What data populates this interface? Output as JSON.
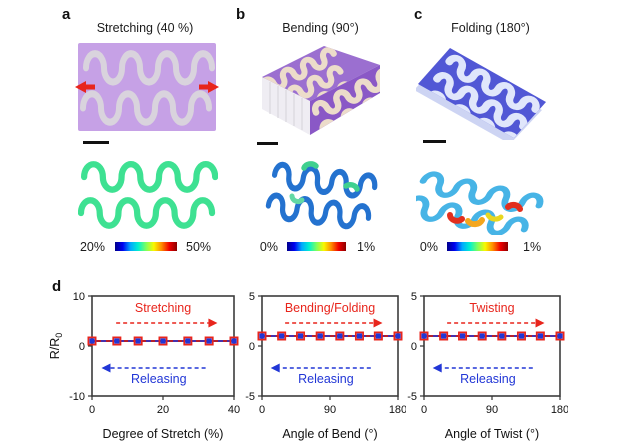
{
  "figure": {
    "panels": {
      "a": {
        "letter": "a",
        "title": "Stretching (40 %)",
        "colorbar": {
          "min": "20%",
          "max": "50%"
        }
      },
      "b": {
        "letter": "b",
        "title": "Bending (90°)",
        "colorbar": {
          "min": "0%",
          "max": "1%"
        }
      },
      "c": {
        "letter": "c",
        "title": "Folding (180°)",
        "colorbar": {
          "min": "0%",
          "max": "1%"
        }
      },
      "d": {
        "letter": "d"
      }
    },
    "colors": {
      "photo_purple": "#c6a1e6",
      "photo_trace_gray": "#d9d3dd",
      "bend_top_purple": "#9b6fd0",
      "bend_front_purple": "#8a58c6",
      "bend_pages_white": "#efedf3",
      "bend_trace_cream": "#ecdcca",
      "fold_blue": "#5157d5",
      "fold_trace_white": "#e0e6fb",
      "sim_green": "#3ee192",
      "sim_blue": "#2472cf",
      "sim_cyan": "#47b4e6",
      "hotspot_red": "#e22f1e",
      "hotspot_orange": "#f4a61e",
      "arrow_red": "#e8251c",
      "colormap_jet": [
        "#00008b",
        "#0000f0",
        "#00a8ff",
        "#00f0d0",
        "#7dff5e",
        "#f8f800",
        "#ff8c00",
        "#f00000",
        "#8b0000"
      ]
    }
  },
  "chart_data": [
    {
      "id": "stretch",
      "type": "line",
      "xlabel": "Degree of Stretch (%)",
      "ylabel": "R/R",
      "ylabel_sub": "0",
      "xlim": [
        0,
        40
      ],
      "ylim": [
        -10,
        10
      ],
      "xticks": [
        0,
        20,
        40
      ],
      "yticks": [
        10,
        0,
        -10
      ],
      "x": [
        0,
        7,
        13,
        20,
        27,
        33,
        40
      ],
      "line_color": "#b5202c",
      "series": [
        {
          "name": "Stretching",
          "color": "#e8251c",
          "marker": "open-square",
          "values": [
            1,
            1,
            1,
            1,
            1,
            1,
            1
          ]
        },
        {
          "name": "Releasing",
          "color": "#2136d6",
          "marker": "filled-square",
          "values": [
            1,
            1,
            1,
            1,
            1,
            1,
            1
          ]
        }
      ],
      "annotations": {
        "forward": {
          "label": "Stretching",
          "color": "#e8251c",
          "direction": "right"
        },
        "back": {
          "label": "Releasing",
          "color": "#2136d6",
          "direction": "left"
        }
      }
    },
    {
      "id": "bend",
      "type": "line",
      "xlabel": "Angle of Bend (°)",
      "ylabel": "",
      "ylabel_sub": "",
      "xlim": [
        0,
        180
      ],
      "ylim": [
        -5,
        5
      ],
      "xticks": [
        0,
        90,
        180
      ],
      "yticks": [
        5,
        0,
        -5
      ],
      "x": [
        0,
        26,
        51,
        77,
        103,
        129,
        154,
        180
      ],
      "line_color": "#b5202c",
      "series": [
        {
          "name": "Bending/Folding",
          "color": "#e8251c",
          "marker": "open-square",
          "values": [
            1,
            1,
            1,
            1,
            1,
            1,
            1,
            1
          ]
        },
        {
          "name": "Releasing",
          "color": "#2136d6",
          "marker": "filled-square",
          "values": [
            1,
            1,
            1,
            1,
            1,
            1,
            1,
            1
          ]
        }
      ],
      "annotations": {
        "forward": {
          "label": "Bending/Folding",
          "color": "#e8251c",
          "direction": "right"
        },
        "back": {
          "label": "Releasing",
          "color": "#2136d6",
          "direction": "left"
        }
      }
    },
    {
      "id": "twist",
      "type": "line",
      "xlabel": "Angle of Twist (°)",
      "ylabel": "",
      "ylabel_sub": "",
      "xlim": [
        0,
        180
      ],
      "ylim": [
        -5,
        5
      ],
      "xticks": [
        0,
        90,
        180
      ],
      "yticks": [
        5,
        0,
        -5
      ],
      "x": [
        0,
        26,
        51,
        77,
        103,
        129,
        154,
        180
      ],
      "line_color": "#b5202c",
      "series": [
        {
          "name": "Twisting",
          "color": "#e8251c",
          "marker": "open-square",
          "values": [
            1,
            1,
            1,
            1,
            1,
            1,
            1,
            1
          ]
        },
        {
          "name": "Releasing",
          "color": "#2136d6",
          "marker": "filled-square",
          "values": [
            1,
            1,
            1,
            1,
            1,
            1,
            1,
            1
          ]
        }
      ],
      "annotations": {
        "forward": {
          "label": "Twisting",
          "color": "#e8251c",
          "direction": "right"
        },
        "back": {
          "label": "Releasing",
          "color": "#2136d6",
          "direction": "left"
        }
      }
    }
  ]
}
